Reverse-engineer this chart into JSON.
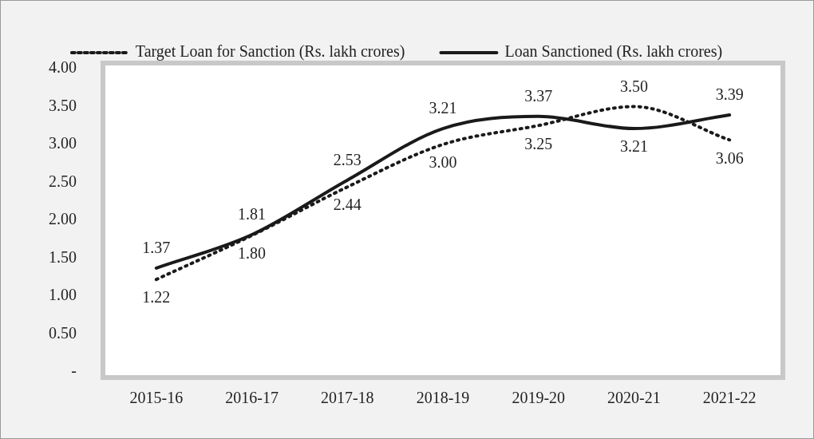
{
  "chart_data": {
    "type": "line",
    "categories": [
      "2015-16",
      "2016-17",
      "2017-18",
      "2018-19",
      "2019-20",
      "2020-21",
      "2021-22"
    ],
    "series": [
      {
        "name": "Target Loan for Sanction (Rs. lakh crores)",
        "color": "#1a1a1a",
        "line_style": "dotted",
        "values": [
          1.22,
          1.8,
          2.44,
          3.0,
          3.25,
          3.5,
          3.06
        ],
        "value_labels": [
          "1.22",
          "1.80",
          "2.44",
          "3.00",
          "3.25",
          "3.50",
          "3.06"
        ]
      },
      {
        "name": "Loan Sanctioned (Rs. lakh crores)",
        "color": "#1a1a1a",
        "line_style": "solid",
        "values": [
          1.37,
          1.81,
          2.53,
          3.21,
          3.37,
          3.21,
          3.39
        ],
        "value_labels": [
          "1.37",
          "1.81",
          "2.53",
          "3.21",
          "3.37",
          "3.21",
          "3.39"
        ]
      }
    ],
    "ylim": [
      0,
      4
    ],
    "yticks": [
      {
        "value": 0,
        "label": "-"
      },
      {
        "value": 0.5,
        "label": "0.50"
      },
      {
        "value": 1,
        "label": "1.00"
      },
      {
        "value": 1.5,
        "label": "1.50"
      },
      {
        "value": 2,
        "label": "2.00"
      },
      {
        "value": 2.5,
        "label": "2.50"
      },
      {
        "value": 3,
        "label": "3.00"
      },
      {
        "value": 3.5,
        "label": "3.50"
      },
      {
        "value": 4,
        "label": "4.00"
      }
    ],
    "grid": false,
    "legend": "top",
    "marker": "none"
  }
}
